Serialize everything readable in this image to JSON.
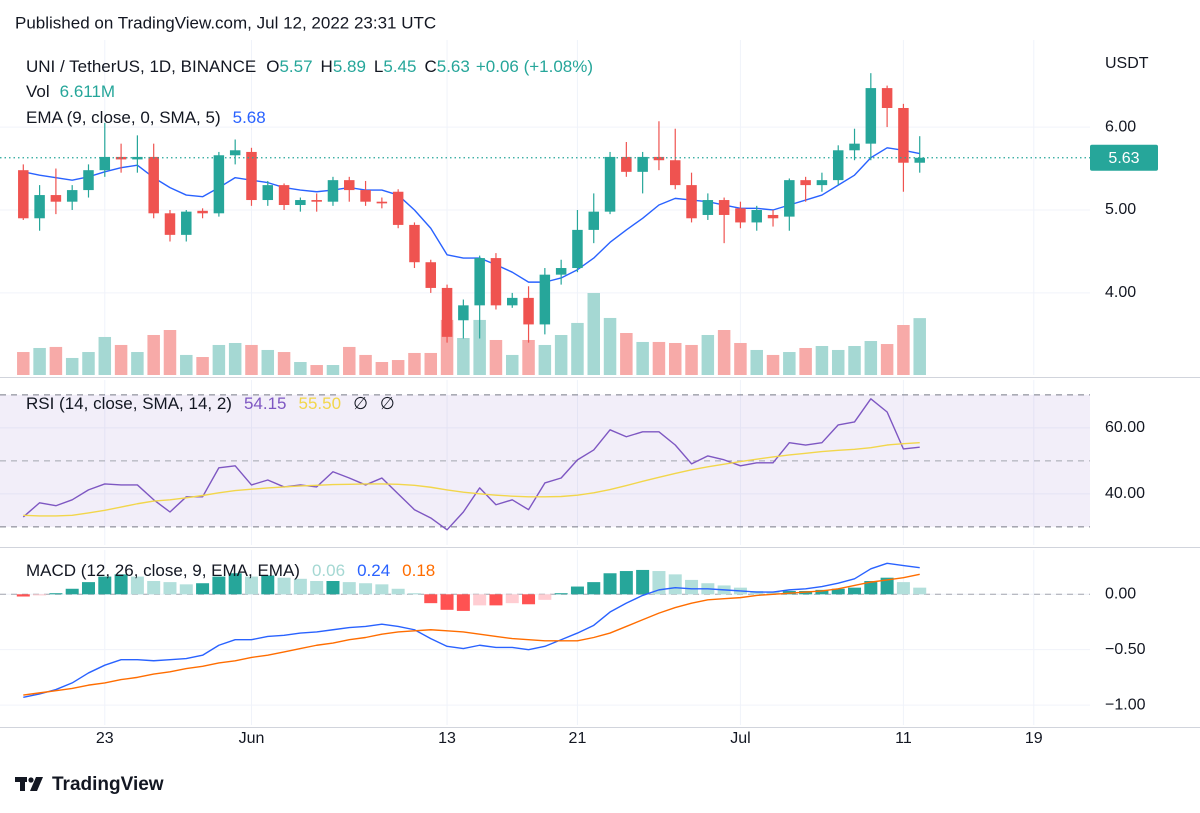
{
  "header": "Published on TradingView.com, Jul 12, 2022 23:31 UTC",
  "footer": "TradingView",
  "chart_data": [
    {
      "type": "candlestick",
      "title": "UNI / TetherUS, 1D, BINANCE",
      "ohlc_labels": [
        "O",
        "H",
        "L",
        "C"
      ],
      "change_label": "+0.06 (+1.08%)",
      "axis_label": "USDT",
      "x": [
        "2022-05-18",
        "2022-05-19",
        "2022-05-20",
        "2022-05-21",
        "2022-05-22",
        "2022-05-23",
        "2022-05-24",
        "2022-05-25",
        "2022-05-26",
        "2022-05-27",
        "2022-05-28",
        "2022-05-29",
        "2022-05-30",
        "2022-05-31",
        "2022-06-01",
        "2022-06-02",
        "2022-06-03",
        "2022-06-04",
        "2022-06-05",
        "2022-06-06",
        "2022-06-07",
        "2022-06-08",
        "2022-06-09",
        "2022-06-10",
        "2022-06-11",
        "2022-06-12",
        "2022-06-13",
        "2022-06-14",
        "2022-06-15",
        "2022-06-16",
        "2022-06-17",
        "2022-06-18",
        "2022-06-19",
        "2022-06-20",
        "2022-06-21",
        "2022-06-22",
        "2022-06-23",
        "2022-06-24",
        "2022-06-25",
        "2022-06-26",
        "2022-06-27",
        "2022-06-28",
        "2022-06-29",
        "2022-06-30",
        "2022-07-01",
        "2022-07-02",
        "2022-07-03",
        "2022-07-04",
        "2022-07-05",
        "2022-07-06",
        "2022-07-07",
        "2022-07-08",
        "2022-07-09",
        "2022-07-10",
        "2022-07-11",
        "2022-07-12"
      ],
      "open": [
        5.48,
        4.9,
        5.18,
        5.1,
        5.24,
        5.48,
        5.64,
        5.61,
        5.64,
        4.96,
        4.7,
        4.99,
        4.96,
        5.66,
        5.7,
        5.12,
        5.3,
        5.06,
        5.12,
        5.1,
        5.36,
        5.24,
        5.1,
        5.22,
        4.82,
        4.37,
        4.06,
        3.67,
        3.85,
        4.42,
        3.85,
        3.94,
        3.62,
        4.22,
        4.3,
        4.76,
        4.98,
        5.64,
        5.46,
        5.64,
        5.6,
        5.3,
        4.94,
        5.12,
        5.02,
        4.85,
        4.94,
        4.92,
        5.36,
        5.3,
        5.36,
        5.72,
        5.8,
        6.47,
        6.23,
        5.57
      ],
      "high": [
        5.55,
        5.3,
        5.5,
        5.3,
        5.55,
        6.05,
        5.8,
        5.9,
        5.8,
        5.0,
        5.0,
        5.02,
        5.7,
        5.85,
        5.75,
        5.35,
        5.32,
        5.15,
        5.2,
        5.4,
        5.4,
        5.35,
        5.15,
        5.25,
        4.85,
        4.4,
        4.1,
        3.92,
        4.45,
        4.48,
        4.0,
        4.08,
        4.3,
        4.4,
        5.0,
        5.2,
        5.7,
        5.82,
        5.7,
        6.07,
        5.98,
        5.45,
        5.2,
        5.15,
        5.1,
        5.05,
        5.0,
        5.38,
        5.4,
        5.45,
        5.78,
        5.98,
        6.65,
        6.5,
        6.28,
        5.89
      ],
      "low": [
        4.88,
        4.75,
        4.95,
        5.0,
        5.15,
        5.4,
        5.45,
        5.45,
        4.9,
        4.62,
        4.62,
        4.9,
        4.92,
        5.55,
        5.05,
        5.05,
        5.0,
        4.98,
        4.98,
        5.05,
        5.1,
        5.05,
        5.02,
        4.78,
        4.3,
        4.0,
        3.4,
        3.45,
        3.45,
        3.8,
        3.82,
        3.4,
        3.5,
        4.1,
        4.25,
        4.6,
        4.95,
        5.4,
        5.2,
        5.48,
        5.25,
        4.85,
        4.88,
        4.6,
        4.78,
        4.75,
        4.8,
        4.75,
        5.1,
        5.22,
        5.3,
        5.6,
        5.6,
        6.0,
        5.22,
        5.45
      ],
      "close": [
        4.9,
        5.18,
        5.1,
        5.24,
        5.48,
        5.64,
        5.61,
        5.64,
        4.96,
        4.7,
        4.98,
        4.96,
        5.66,
        5.72,
        5.12,
        5.3,
        5.06,
        5.12,
        5.1,
        5.36,
        5.24,
        5.1,
        5.08,
        4.82,
        4.37,
        4.06,
        3.47,
        3.85,
        4.42,
        3.85,
        3.94,
        3.62,
        4.22,
        4.3,
        4.76,
        4.98,
        5.64,
        5.46,
        5.64,
        5.6,
        5.3,
        4.9,
        5.12,
        4.94,
        4.85,
        5.0,
        4.9,
        5.36,
        5.3,
        5.36,
        5.72,
        5.8,
        6.47,
        6.23,
        5.57,
        5.63
      ],
      "colors": {
        "up": "#26a69a",
        "down": "#ef5350"
      },
      "volume": {
        "name": "Vol",
        "label": "6.611M",
        "values": [
          2.67,
          3.14,
          3.26,
          1.98,
          2.67,
          4.42,
          3.49,
          2.67,
          4.65,
          5.23,
          2.33,
          2.09,
          3.49,
          3.72,
          3.49,
          2.91,
          2.67,
          1.51,
          1.16,
          1.16,
          3.26,
          2.33,
          1.51,
          1.74,
          2.56,
          2.56,
          6.4,
          4.3,
          6.4,
          4.07,
          2.33,
          4.07,
          3.49,
          4.65,
          6.05,
          9.53,
          6.63,
          4.88,
          3.84,
          3.84,
          3.72,
          3.49,
          4.65,
          5.23,
          3.72,
          2.91,
          2.33,
          2.67,
          3.14,
          3.37,
          2.91,
          3.37,
          3.95,
          3.6,
          5.81,
          6.611
        ],
        "colors": {
          "up": "#a5d8d3",
          "down": "#f7aaa8"
        }
      },
      "ema": {
        "name": "EMA (9, close, 0, SMA, 5)",
        "color": "#2962ff",
        "values": [
          5.46,
          5.42,
          5.39,
          5.36,
          5.4,
          5.46,
          5.51,
          5.54,
          5.39,
          5.27,
          5.18,
          5.16,
          5.27,
          5.39,
          5.36,
          5.33,
          5.27,
          5.24,
          5.22,
          5.24,
          5.27,
          5.24,
          5.24,
          5.18,
          5.0,
          4.78,
          4.46,
          4.42,
          4.42,
          4.34,
          4.25,
          4.13,
          4.13,
          4.18,
          4.28,
          4.42,
          4.61,
          4.76,
          4.9,
          5.06,
          5.14,
          5.12,
          5.1,
          5.06,
          5.02,
          5.02,
          5.0,
          5.06,
          5.12,
          5.18,
          5.3,
          5.42,
          5.63,
          5.75,
          5.72,
          5.68
        ]
      },
      "ylim": [
        3.01,
        7.05
      ],
      "yticks": [
        {
          "value": 4,
          "label": "4.00"
        },
        {
          "value": 5,
          "label": "5.00"
        },
        {
          "value": 6,
          "label": "6.00"
        }
      ],
      "xlim": [
        "2022-05-17",
        "2022-07-23"
      ],
      "xticks": [
        {
          "value": "2022-05-23",
          "label": "23"
        },
        {
          "value": "2022-06-01",
          "label": "Jun"
        },
        {
          "value": "2022-06-13",
          "label": "13"
        },
        {
          "value": "2022-06-21",
          "label": "21"
        },
        {
          "value": "2022-07-01",
          "label": "Jul"
        },
        {
          "value": "2022-07-11",
          "label": "11"
        },
        {
          "value": "2022-07-19",
          "label": "19"
        }
      ],
      "last_price_line": true,
      "grid": true
    },
    {
      "type": "line",
      "title": "RSI (14, close, SMA, 14, 2)",
      "extra_labels": [
        "∅",
        "∅"
      ],
      "series": [
        {
          "color": "#7e57c2",
          "values": [
            33.0,
            37.3,
            36.4,
            38.2,
            41.2,
            43.0,
            42.7,
            42.7,
            38.2,
            34.5,
            39.1,
            39.1,
            47.9,
            48.5,
            42.7,
            44.2,
            42.1,
            42.7,
            42.1,
            46.7,
            44.8,
            42.7,
            44.8,
            40.0,
            35.2,
            32.7,
            29.1,
            34.5,
            41.8,
            36.7,
            38.2,
            35.2,
            43.3,
            44.8,
            50.3,
            53.3,
            59.4,
            57.3,
            58.8,
            58.8,
            54.8,
            49.1,
            51.5,
            50.3,
            48.5,
            49.4,
            49.4,
            55.5,
            54.8,
            55.5,
            60.9,
            61.8,
            68.8,
            64.8,
            53.6,
            54.15
          ]
        },
        {
          "color": "#f2d64b",
          "last_label": "55.50",
          "values": [
            33.5,
            33.3,
            33.3,
            33.5,
            34.2,
            35.0,
            36.0,
            37.0,
            37.8,
            38.2,
            38.8,
            39.5,
            40.3,
            41.0,
            41.4,
            41.8,
            42.1,
            42.4,
            42.6,
            42.8,
            42.9,
            43.0,
            43.0,
            42.9,
            42.6,
            42.0,
            41.2,
            40.5,
            40.0,
            39.6,
            39.3,
            39.1,
            39.1,
            39.2,
            39.6,
            40.3,
            41.3,
            42.5,
            43.8,
            45.0,
            46.2,
            47.3,
            48.2,
            49.0,
            49.8,
            50.5,
            51.2,
            51.8,
            52.3,
            52.8,
            53.2,
            53.5,
            54.0,
            54.8,
            55.2,
            55.5
          ]
        }
      ],
      "bands": [
        30,
        70
      ],
      "midline": 50,
      "ylim": [
        24.5,
        74.5
      ],
      "yticks": [
        {
          "value": 40,
          "label": "40.00"
        },
        {
          "value": 60,
          "label": "60.00"
        }
      ],
      "grid": true
    },
    {
      "type": "combo",
      "title": "MACD (12, 26, close, 9, EMA, EMA)",
      "series": [
        {
          "style": "histogram",
          "color": "#a5d8d3",
          "colors": {
            "up_rising": "#26a69a",
            "up_falling": "#b2dfdb",
            "down_falling": "#ff5252",
            "down_rising": "#ffcdd2"
          },
          "values": [
            -0.02,
            -0.01,
            0.01,
            0.05,
            0.11,
            0.16,
            0.18,
            0.16,
            0.12,
            0.11,
            0.09,
            0.1,
            0.16,
            0.19,
            0.16,
            0.17,
            0.15,
            0.14,
            0.12,
            0.12,
            0.11,
            0.1,
            0.09,
            0.05,
            0.01,
            -0.08,
            -0.14,
            -0.15,
            -0.1,
            -0.1,
            -0.08,
            -0.09,
            -0.05,
            0.01,
            0.07,
            0.11,
            0.19,
            0.21,
            0.22,
            0.21,
            0.18,
            0.13,
            0.1,
            0.08,
            0.06,
            0.03,
            0.02,
            0.03,
            0.03,
            0.04,
            0.05,
            0.06,
            0.12,
            0.15,
            0.11,
            0.06
          ]
        },
        {
          "style": "line",
          "color": "#2962ff",
          "values": [
            -0.93,
            -0.9,
            -0.86,
            -0.8,
            -0.71,
            -0.64,
            -0.59,
            -0.59,
            -0.6,
            -0.59,
            -0.58,
            -0.55,
            -0.46,
            -0.41,
            -0.41,
            -0.38,
            -0.37,
            -0.35,
            -0.34,
            -0.32,
            -0.3,
            -0.29,
            -0.27,
            -0.29,
            -0.32,
            -0.4,
            -0.47,
            -0.49,
            -0.46,
            -0.48,
            -0.48,
            -0.5,
            -0.47,
            -0.41,
            -0.35,
            -0.28,
            -0.16,
            -0.08,
            -0.01,
            0.04,
            0.06,
            0.05,
            0.05,
            0.04,
            0.03,
            0.02,
            0.02,
            0.04,
            0.05,
            0.07,
            0.1,
            0.14,
            0.23,
            0.28,
            0.26,
            0.24
          ]
        },
        {
          "style": "line",
          "color": "#ff6d00",
          "values": [
            -0.91,
            -0.89,
            -0.87,
            -0.85,
            -0.82,
            -0.8,
            -0.77,
            -0.75,
            -0.72,
            -0.7,
            -0.67,
            -0.65,
            -0.62,
            -0.6,
            -0.57,
            -0.55,
            -0.52,
            -0.49,
            -0.46,
            -0.44,
            -0.41,
            -0.39,
            -0.36,
            -0.34,
            -0.33,
            -0.32,
            -0.33,
            -0.34,
            -0.36,
            -0.38,
            -0.4,
            -0.41,
            -0.42,
            -0.42,
            -0.42,
            -0.39,
            -0.35,
            -0.29,
            -0.23,
            -0.17,
            -0.12,
            -0.08,
            -0.05,
            -0.04,
            -0.03,
            -0.01,
            0.0,
            0.01,
            0.02,
            0.03,
            0.05,
            0.08,
            0.11,
            0.13,
            0.15,
            0.18
          ]
        }
      ],
      "zero_line": 0,
      "ylim": [
        -1.18,
        0.4
      ],
      "yticks": [
        {
          "value": -1,
          "label": "−1.00"
        },
        {
          "value": -0.5,
          "label": "−0.50"
        },
        {
          "value": 0,
          "label": "0.00"
        }
      ],
      "grid": true
    }
  ]
}
